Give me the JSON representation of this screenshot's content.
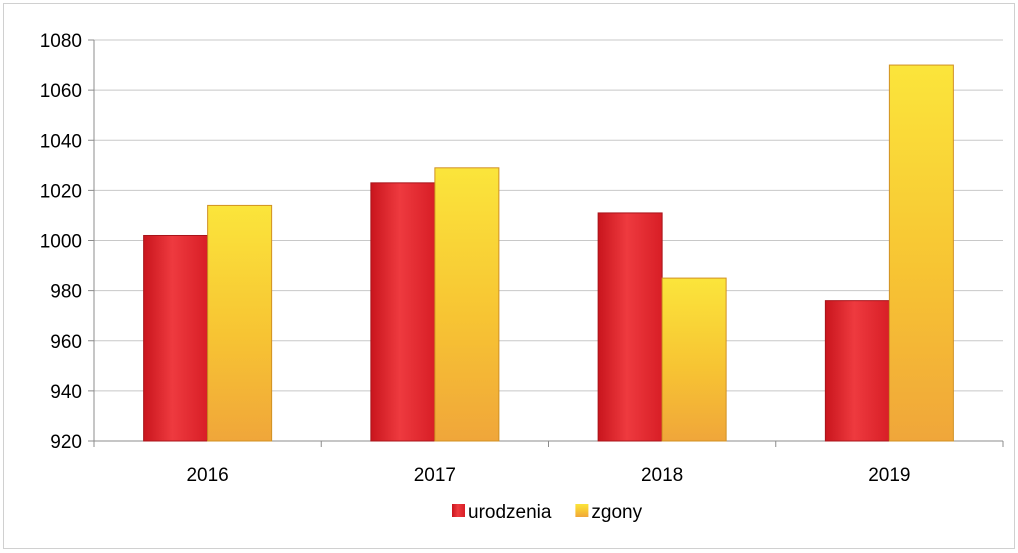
{
  "chart_data": {
    "type": "bar",
    "categories": [
      "2016",
      "2017",
      "2018",
      "2019"
    ],
    "series": [
      {
        "name": "urodzenia",
        "values": [
          1002,
          1023,
          1011,
          976
        ],
        "color": "#e3222b"
      },
      {
        "name": "zgony",
        "values": [
          1014,
          1029,
          985,
          1070
        ],
        "color": "#f6c22b"
      }
    ],
    "yticks": [
      920,
      940,
      960,
      980,
      1000,
      1020,
      1040,
      1060,
      1080
    ],
    "ylim": [
      920,
      1080
    ],
    "grid": true,
    "legend_position": "bottom"
  }
}
